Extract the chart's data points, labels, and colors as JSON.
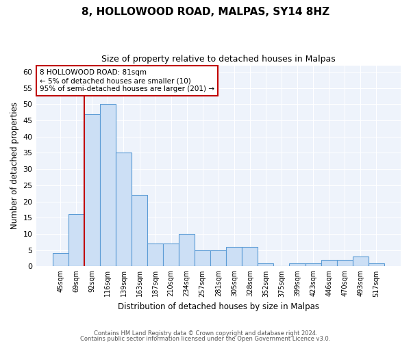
{
  "title": "8, HOLLOWOOD ROAD, MALPAS, SY14 8HZ",
  "subtitle": "Size of property relative to detached houses in Malpas",
  "xlabel": "Distribution of detached houses by size in Malpas",
  "ylabel": "Number of detached properties",
  "categories": [
    "45sqm",
    "69sqm",
    "92sqm",
    "116sqm",
    "139sqm",
    "163sqm",
    "187sqm",
    "210sqm",
    "234sqm",
    "257sqm",
    "281sqm",
    "305sqm",
    "328sqm",
    "352sqm",
    "375sqm",
    "399sqm",
    "423sqm",
    "446sqm",
    "470sqm",
    "493sqm",
    "517sqm"
  ],
  "bar_values": [
    4,
    16,
    47,
    50,
    35,
    22,
    7,
    7,
    10,
    5,
    5,
    6,
    6,
    1,
    0,
    1,
    1,
    2,
    2,
    3,
    1
  ],
  "bar_color": "#ccdff5",
  "bar_edge_color": "#5b9bd5",
  "vline_x": 1.5,
  "vline_color": "#c00000",
  "annotation_title": "8 HOLLOWOOD ROAD: 81sqm",
  "annotation_line1": "← 5% of detached houses are smaller (10)",
  "annotation_line2": "95% of semi-detached houses are larger (201) →",
  "annotation_box_color": "#c00000",
  "ylim": [
    0,
    62
  ],
  "yticks": [
    0,
    5,
    10,
    15,
    20,
    25,
    30,
    35,
    40,
    45,
    50,
    55,
    60
  ],
  "footer1": "Contains HM Land Registry data © Crown copyright and database right 2024.",
  "footer2": "Contains public sector information licensed under the Open Government Licence v3.0.",
  "plot_bg_color": "#eef3fb"
}
